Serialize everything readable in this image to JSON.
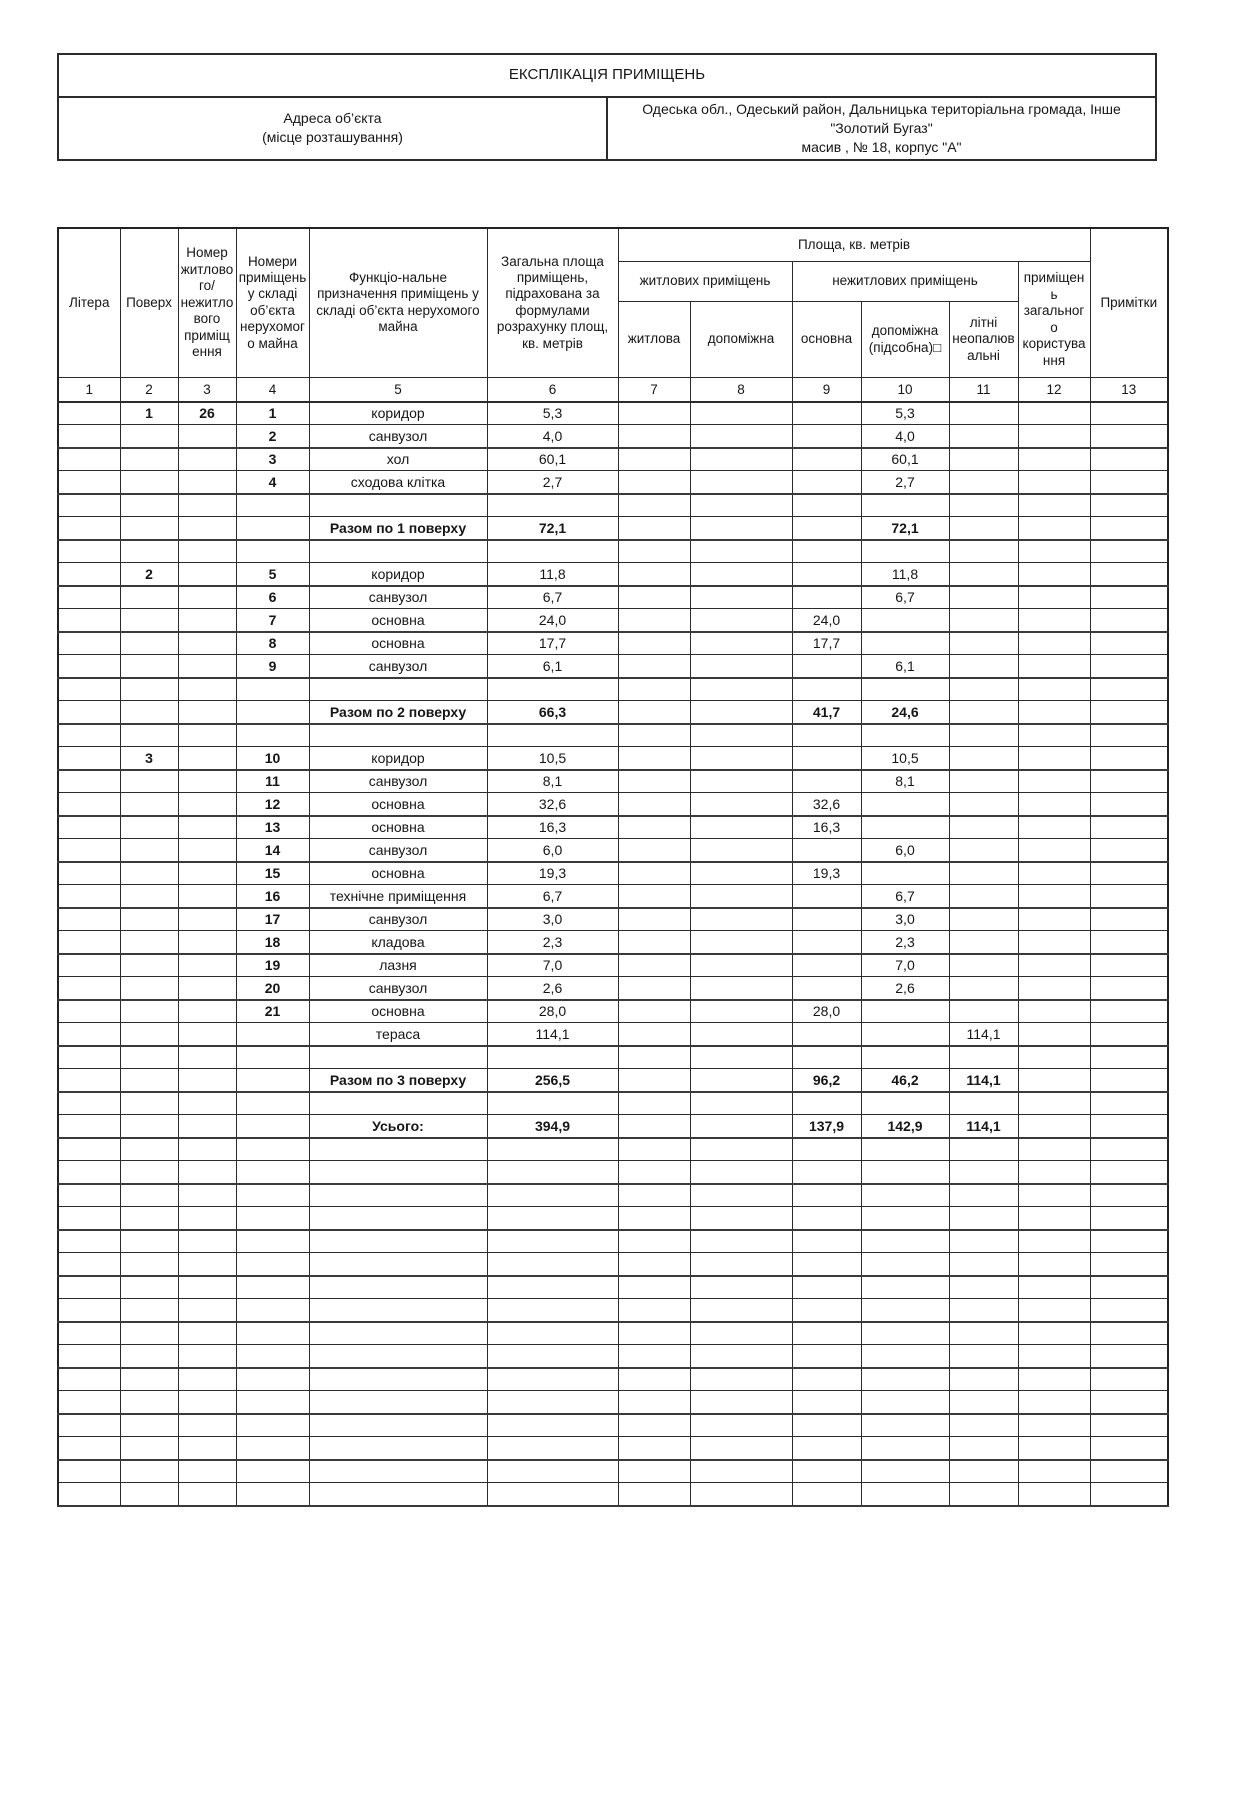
{
  "document": {
    "title": "ЕКСПЛІКАЦІЯ ПРИМІЩЕНЬ",
    "address_label_line1": "Адреса об’єкта",
    "address_label_line2": "(місце розташування)",
    "address_value_line1": "Одеська обл., Одеський район, Дальницька територіальна громада, Інше \"Золотий Бугаз\"",
    "address_value_line2": "масив , № 18, корпус \"А\""
  },
  "colors": {
    "ink": "#161616",
    "background": "#ffffff"
  },
  "table": {
    "headers": {
      "litera": "Літера",
      "poverkh": "Поверх",
      "room_number": "Номер житлового/ нежитлового приміщення",
      "premises_numbers": "Номери приміщень у складі об’єкта нерухомого майна",
      "functional_purpose": "Функціо-нальне призначення приміщень у складі об’єкта нерухомого майна",
      "total_area": "Загальна площа приміщень, підрахована за формулами розрахунку площ, кв. метрів",
      "area_group": "Площа, кв. метрів",
      "residential_group": "житлових приміщень",
      "nonresidential_group": "нежитлових приміщень",
      "zhytlova": "житлова",
      "dopomizhna": "допоміжна",
      "osnovna": "основна",
      "dopomizhna_pidsobna": "допоміжна (підсобна)□",
      "litni": "літні неопалювальні",
      "common_use": "приміщень загального користування",
      "prymitky": "Примітки"
    },
    "column_numbers": [
      "1",
      "2",
      "3",
      "4",
      "5",
      "6",
      "7",
      "8",
      "9",
      "10",
      "11",
      "12",
      "13"
    ],
    "rows": [
      {
        "cells": [
          "",
          "1",
          "26",
          "1",
          "коридор",
          "5,3",
          "",
          "",
          "",
          "5,3",
          "",
          "",
          ""
        ]
      },
      {
        "cells": [
          "",
          "",
          "",
          "2",
          "санвузол",
          "4,0",
          "",
          "",
          "",
          "4,0",
          "",
          "",
          ""
        ]
      },
      {
        "cells": [
          "",
          "",
          "",
          "3",
          "хол",
          "60,1",
          "",
          "",
          "",
          "60,1",
          "",
          "",
          ""
        ]
      },
      {
        "cells": [
          "",
          "",
          "",
          "4",
          "сходова клітка",
          "2,7",
          "",
          "",
          "",
          "2,7",
          "",
          "",
          ""
        ]
      },
      {
        "cells": []
      },
      {
        "cells": [
          "",
          "",
          "",
          "",
          "Разом по 1 поверху",
          "72,1",
          "",
          "",
          "",
          "72,1",
          "",
          "",
          ""
        ],
        "bold": true
      },
      {
        "cells": []
      },
      {
        "cells": [
          "",
          "2",
          "",
          "5",
          "коридор",
          "11,8",
          "",
          "",
          "",
          "11,8",
          "",
          "",
          ""
        ]
      },
      {
        "cells": [
          "",
          "",
          "",
          "6",
          "санвузол",
          "6,7",
          "",
          "",
          "",
          "6,7",
          "",
          "",
          ""
        ]
      },
      {
        "cells": [
          "",
          "",
          "",
          "7",
          "основна",
          "24,0",
          "",
          "",
          "24,0",
          "",
          "",
          "",
          ""
        ]
      },
      {
        "cells": [
          "",
          "",
          "",
          "8",
          "основна",
          "17,7",
          "",
          "",
          "17,7",
          "",
          "",
          "",
          ""
        ]
      },
      {
        "cells": [
          "",
          "",
          "",
          "9",
          "санвузол",
          "6,1",
          "",
          "",
          "",
          "6,1",
          "",
          "",
          ""
        ]
      },
      {
        "cells": []
      },
      {
        "cells": [
          "",
          "",
          "",
          "",
          "Разом по 2 поверху",
          "66,3",
          "",
          "",
          "41,7",
          "24,6",
          "",
          "",
          ""
        ],
        "bold": true
      },
      {
        "cells": []
      },
      {
        "cells": [
          "",
          "3",
          "",
          "10",
          "коридор",
          "10,5",
          "",
          "",
          "",
          "10,5",
          "",
          "",
          ""
        ]
      },
      {
        "cells": [
          "",
          "",
          "",
          "11",
          "санвузол",
          "8,1",
          "",
          "",
          "",
          "8,1",
          "",
          "",
          ""
        ]
      },
      {
        "cells": [
          "",
          "",
          "",
          "12",
          "основна",
          "32,6",
          "",
          "",
          "32,6",
          "",
          "",
          "",
          ""
        ]
      },
      {
        "cells": [
          "",
          "",
          "",
          "13",
          "основна",
          "16,3",
          "",
          "",
          "16,3",
          "",
          "",
          "",
          ""
        ]
      },
      {
        "cells": [
          "",
          "",
          "",
          "14",
          "санвузол",
          "6,0",
          "",
          "",
          "",
          "6,0",
          "",
          "",
          ""
        ]
      },
      {
        "cells": [
          "",
          "",
          "",
          "15",
          "основна",
          "19,3",
          "",
          "",
          "19,3",
          "",
          "",
          "",
          ""
        ]
      },
      {
        "cells": [
          "",
          "",
          "",
          "16",
          "технічне приміщення",
          "6,7",
          "",
          "",
          "",
          "6,7",
          "",
          "",
          ""
        ]
      },
      {
        "cells": [
          "",
          "",
          "",
          "17",
          "санвузол",
          "3,0",
          "",
          "",
          "",
          "3,0",
          "",
          "",
          ""
        ]
      },
      {
        "cells": [
          "",
          "",
          "",
          "18",
          "кладова",
          "2,3",
          "",
          "",
          "",
          "2,3",
          "",
          "",
          ""
        ]
      },
      {
        "cells": [
          "",
          "",
          "",
          "19",
          "лазня",
          "7,0",
          "",
          "",
          "",
          "7,0",
          "",
          "",
          ""
        ]
      },
      {
        "cells": [
          "",
          "",
          "",
          "20",
          "санвузол",
          "2,6",
          "",
          "",
          "",
          "2,6",
          "",
          "",
          ""
        ]
      },
      {
        "cells": [
          "",
          "",
          "",
          "21",
          "основна",
          "28,0",
          "",
          "",
          "28,0",
          "",
          "",
          "",
          ""
        ]
      },
      {
        "cells": [
          "",
          "",
          "",
          "",
          "тераса",
          "114,1",
          "",
          "",
          "",
          "",
          "114,1",
          "",
          ""
        ]
      },
      {
        "cells": []
      },
      {
        "cells": [
          "",
          "",
          "",
          "",
          "Разом по 3 поверху",
          "256,5",
          "",
          "",
          "96,2",
          "46,2",
          "114,1",
          "",
          ""
        ],
        "bold": true
      },
      {
        "cells": []
      },
      {
        "cells": [
          "",
          "",
          "",
          "",
          "Усього:",
          "394,9",
          "",
          "",
          "137,9",
          "142,9",
          "114,1",
          "",
          ""
        ],
        "bold": true
      },
      {
        "cells": []
      },
      {
        "cells": []
      },
      {
        "cells": []
      },
      {
        "cells": []
      },
      {
        "cells": []
      },
      {
        "cells": []
      },
      {
        "cells": []
      },
      {
        "cells": []
      },
      {
        "cells": []
      },
      {
        "cells": []
      },
      {
        "cells": []
      },
      {
        "cells": []
      },
      {
        "cells": []
      },
      {
        "cells": []
      },
      {
        "cells": []
      },
      {
        "cells": []
      }
    ]
  }
}
